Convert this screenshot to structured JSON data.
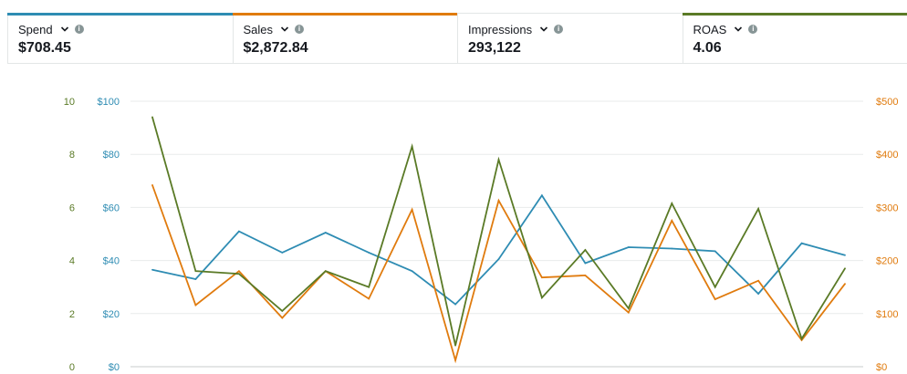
{
  "metrics": [
    {
      "label": "Spend",
      "value": "$708.45",
      "color": "#2e8cb3"
    },
    {
      "label": "Sales",
      "value": "$2,872.84",
      "color": "#e07b0e"
    },
    {
      "label": "Impressions",
      "value": "293,122",
      "color": ""
    },
    {
      "label": "ROAS",
      "value": "4.06",
      "color": "#5a7a26"
    }
  ],
  "chart_data": {
    "type": "line",
    "grid": true,
    "axes": {
      "roas": {
        "ticks": [
          "0",
          "2",
          "4",
          "6",
          "8",
          "10"
        ],
        "range": [
          0,
          10
        ],
        "color": "#5a7a26"
      },
      "spend": {
        "ticks": [
          "$0",
          "$20",
          "$40",
          "$60",
          "$80",
          "$100"
        ],
        "range": [
          0,
          100
        ],
        "color": "#2e8cb3"
      },
      "sales": {
        "ticks": [
          "$0",
          "$100",
          "$200",
          "$300",
          "$400",
          "$500"
        ],
        "range": [
          0,
          500
        ],
        "color": "#e07b0e"
      }
    },
    "series": [
      {
        "key": "spend",
        "axis": "spend",
        "color": "#2e8cb3",
        "values": [
          36.5,
          33,
          51,
          43,
          50.5,
          43,
          36,
          23.5,
          40.5,
          64.5,
          39,
          45,
          44.5,
          43.5,
          27.5,
          46.5,
          42
        ]
      },
      {
        "key": "sales",
        "axis": "sales",
        "color": "#e07b0e",
        "values": [
          342,
          116,
          180,
          92,
          180,
          128,
          296,
          12,
          313,
          168,
          172,
          102,
          275,
          127,
          162,
          50,
          156
        ]
      },
      {
        "key": "roas",
        "axis": "roas",
        "color": "#5a7a26",
        "values": [
          9.4,
          3.6,
          3.5,
          2.1,
          3.6,
          3.0,
          8.3,
          0.8,
          7.8,
          2.6,
          4.4,
          2.2,
          6.15,
          3.0,
          5.95,
          1.05,
          3.7
        ]
      }
    ]
  }
}
